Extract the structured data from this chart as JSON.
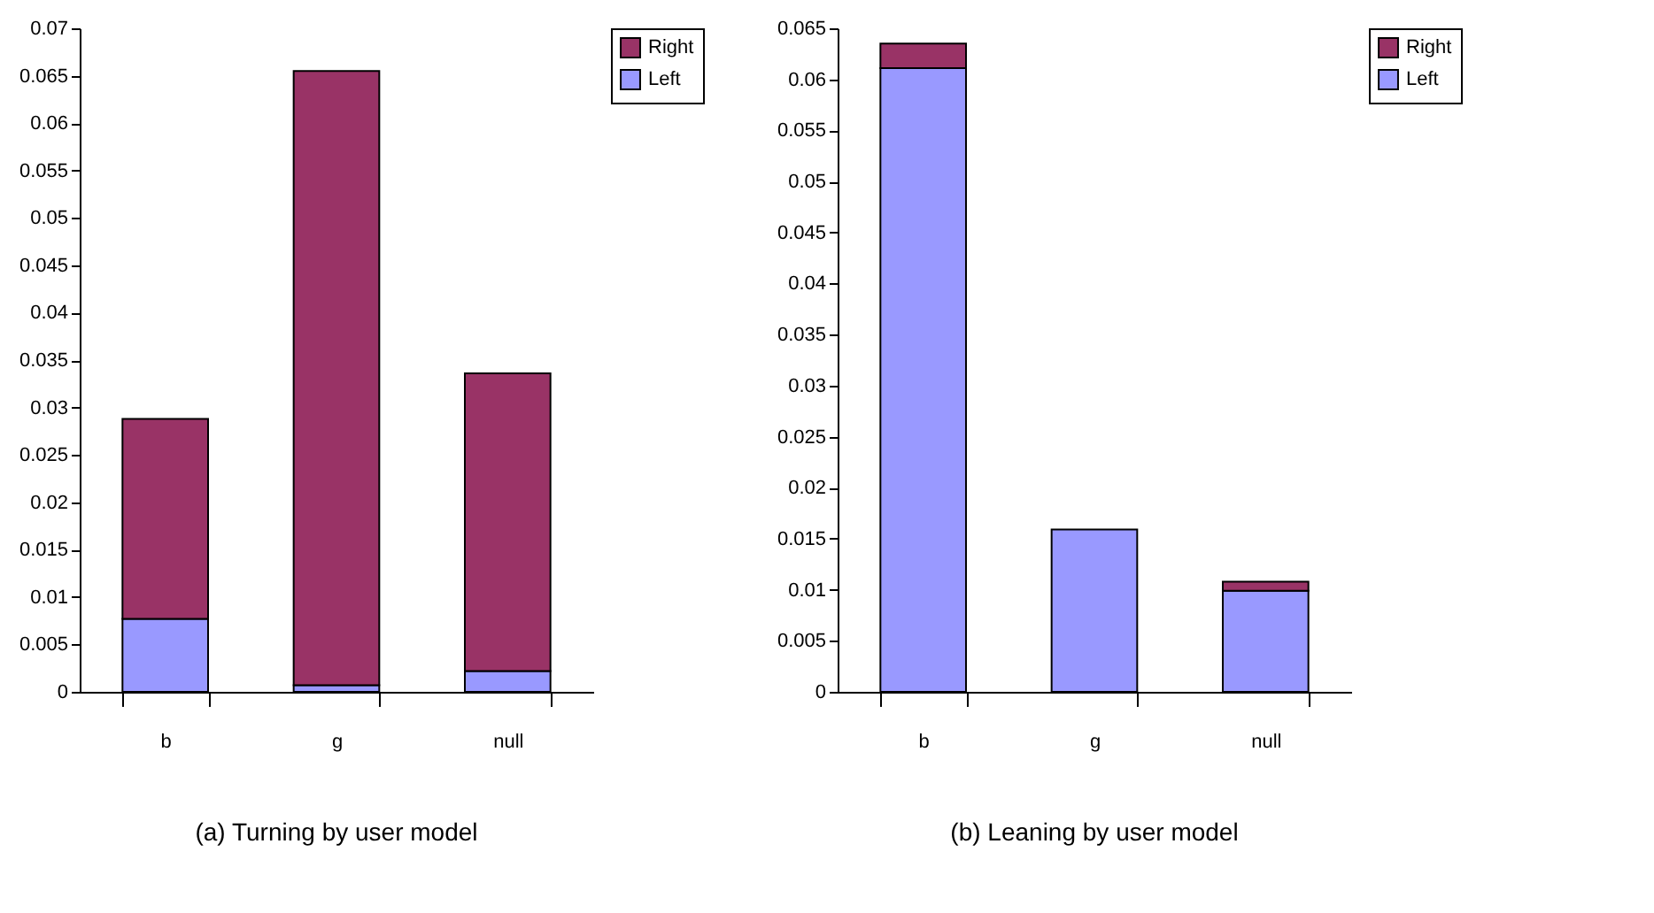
{
  "chart_data": [
    {
      "type": "bar",
      "title": "(a) Turning by user model",
      "categories": [
        "b",
        "g",
        "null"
      ],
      "stacked": true,
      "legend": "right",
      "series": [
        {
          "name": "Left",
          "color": "#9999ff",
          "values": [
            0.0077,
            0.0007,
            0.0022
          ]
        },
        {
          "name": "Right",
          "color": "#993366",
          "values": [
            0.0211,
            0.0648,
            0.0314
          ]
        }
      ],
      "ylim": [
        0,
        0.07
      ],
      "yticks": [
        0,
        0.005,
        0.01,
        0.015,
        0.02,
        0.025,
        0.03,
        0.035,
        0.04,
        0.045,
        0.05,
        0.055,
        0.06,
        0.065,
        0.07
      ]
    },
    {
      "type": "bar",
      "title": "(b) Leaning by user model",
      "categories": [
        "b",
        "g",
        "null"
      ],
      "stacked": true,
      "legend": "right",
      "series": [
        {
          "name": "Left",
          "color": "#9999ff",
          "values": [
            0.0611,
            0.0159,
            0.0099
          ]
        },
        {
          "name": "Right",
          "color": "#993366",
          "values": [
            0.0024,
            null,
            0.0009
          ]
        }
      ],
      "ylim": [
        0,
        0.065
      ],
      "yticks": [
        0,
        0.005,
        0.01,
        0.015,
        0.02,
        0.025,
        0.03,
        0.035,
        0.04,
        0.045,
        0.05,
        0.055,
        0.06,
        0.065
      ]
    }
  ]
}
